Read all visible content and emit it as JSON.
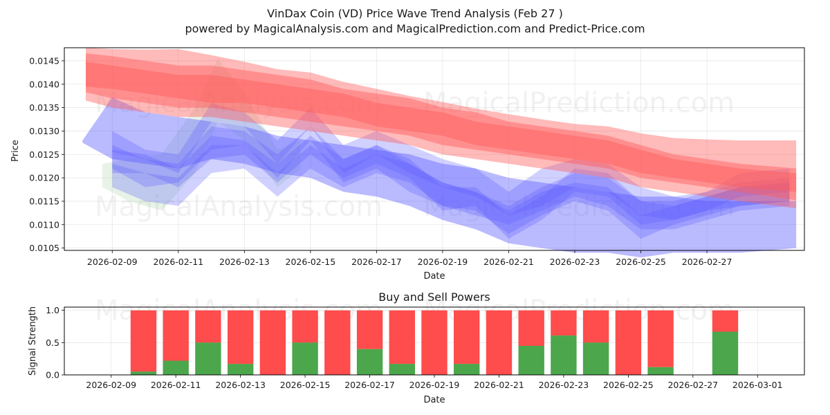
{
  "chart_data": [
    {
      "type": "area",
      "title_line1": "VinDax Coin (VD) Price Wave Trend Analysis (Feb 27 )",
      "title_line2": "powered by MagicalAnalysis.com and MagicalPrediction.com and Predict-Price.com",
      "xlabel": "Date",
      "ylabel": "Price",
      "ylim": [
        0.01045,
        0.01478
      ],
      "xlim_day": [
        7.55,
        29.95
      ],
      "x_ticks": [
        {
          "day": 9,
          "label": "2026-02-09"
        },
        {
          "day": 11,
          "label": "2026-02-11"
        },
        {
          "day": 13,
          "label": "2026-02-13"
        },
        {
          "day": 15,
          "label": "2026-02-15"
        },
        {
          "day": 17,
          "label": "2026-02-17"
        },
        {
          "day": 19,
          "label": "2026-02-19"
        },
        {
          "day": 21,
          "label": "2026-02-21"
        },
        {
          "day": 23,
          "label": "2026-02-23"
        },
        {
          "day": 25,
          "label": "2026-02-25"
        },
        {
          "day": 27,
          "label": "2026-02-27"
        }
      ],
      "y_ticks": [
        {
          "value": 0.0105,
          "label": "0.0105"
        },
        {
          "value": 0.011,
          "label": "0.0110"
        },
        {
          "value": 0.0115,
          "label": "0.0115"
        },
        {
          "value": 0.012,
          "label": "0.0120"
        },
        {
          "value": 0.0125,
          "label": "0.0125"
        },
        {
          "value": 0.013,
          "label": "0.0130"
        },
        {
          "value": 0.0135,
          "label": "0.0135"
        },
        {
          "value": 0.014,
          "label": "0.0140"
        },
        {
          "value": 0.0145,
          "label": "0.0145"
        }
      ],
      "watermarks": [
        "MagicalAnalysis.com",
        "MagicalPrediction.com"
      ],
      "red_bands": [
        {
          "x": [
            8.2,
            9,
            10,
            11,
            12,
            13,
            14,
            15,
            16,
            17,
            18,
            19,
            20,
            21,
            22,
            23,
            24,
            25,
            26,
            27,
            28,
            29.7
          ],
          "lower": [
            0.01365,
            0.0135,
            0.0134,
            0.0133,
            0.0133,
            0.0132,
            0.0131,
            0.013,
            0.0129,
            0.0128,
            0.0127,
            0.0125,
            0.0124,
            0.0123,
            0.0122,
            0.0121,
            0.012,
            0.0118,
            0.0117,
            0.0116,
            0.0115,
            0.01135
          ],
          "upper": [
            0.01478,
            0.01475,
            0.01474,
            0.01475,
            0.01462,
            0.01448,
            0.01432,
            0.01425,
            0.01405,
            0.0139,
            0.01375,
            0.01362,
            0.01348,
            0.01336,
            0.01325,
            0.01315,
            0.0131,
            0.01295,
            0.01285,
            0.01282,
            0.0128,
            0.0128
          ]
        },
        {
          "x": [
            8.2,
            9,
            10,
            11,
            12,
            13,
            14,
            15,
            16,
            17,
            18,
            19,
            20,
            21,
            22,
            23,
            24,
            25,
            26,
            27,
            28,
            29.7
          ],
          "lower": [
            0.01383,
            0.0137,
            0.0136,
            0.0135,
            0.0135,
            0.0134,
            0.0133,
            0.0132,
            0.0131,
            0.013,
            0.0129,
            0.0127,
            0.0126,
            0.0125,
            0.0124,
            0.0123,
            0.0122,
            0.012,
            0.0119,
            0.0118,
            0.0117,
            0.01152
          ],
          "upper": [
            0.01466,
            0.0146,
            0.0145,
            0.0144,
            0.0144,
            0.0143,
            0.0142,
            0.0141,
            0.0139,
            0.0138,
            0.0137,
            0.0135,
            0.0134,
            0.0132,
            0.0131,
            0.013,
            0.0129,
            0.0127,
            0.0125,
            0.0124,
            0.0123,
            0.0122
          ]
        },
        {
          "x": [
            8.2,
            9,
            10,
            11,
            12,
            13,
            14,
            15,
            16,
            17,
            18,
            19,
            20,
            21,
            22,
            23,
            24,
            25,
            26,
            27,
            28,
            29.7
          ],
          "lower": [
            0.01395,
            0.0139,
            0.0138,
            0.0137,
            0.0136,
            0.0136,
            0.0135,
            0.0134,
            0.0133,
            0.0131,
            0.013,
            0.0129,
            0.0127,
            0.0126,
            0.0125,
            0.0124,
            0.0123,
            0.0121,
            0.012,
            0.0119,
            0.0118,
            0.0117
          ],
          "upper": [
            0.01448,
            0.0144,
            0.0143,
            0.0142,
            0.0142,
            0.0141,
            0.014,
            0.0139,
            0.0138,
            0.0136,
            0.0135,
            0.0134,
            0.0132,
            0.0131,
            0.013,
            0.0129,
            0.0128,
            0.0126,
            0.0124,
            0.0123,
            0.0122,
            0.0121
          ]
        }
      ],
      "blue_bands": [
        {
          "x": [
            8.1,
            9,
            10,
            11,
            12,
            13,
            14,
            15,
            16,
            17,
            18,
            19,
            20,
            21,
            22,
            23,
            24,
            25,
            26,
            27,
            28,
            29.7
          ],
          "lower": [
            0.01275,
            0.0124,
            0.0123,
            0.0122,
            0.0124,
            0.0123,
            0.0121,
            0.012,
            0.0117,
            0.0116,
            0.0114,
            0.0111,
            0.0109,
            0.0106,
            0.0105,
            0.0104,
            0.0104,
            0.0103,
            0.0104,
            0.0104,
            0.0104,
            0.0105
          ],
          "upper": [
            0.0128,
            0.01372,
            0.0134,
            0.0133,
            0.0132,
            0.0131,
            0.0129,
            0.0128,
            0.0127,
            0.0126,
            0.0125,
            0.0123,
            0.0122,
            0.012,
            0.0119,
            0.0118,
            0.0117,
            0.0116,
            0.0116,
            0.0115,
            0.0115,
            0.0115
          ]
        },
        {
          "x": [
            9,
            10,
            11,
            12,
            13,
            14,
            15,
            16,
            17,
            18,
            19,
            20,
            21,
            22,
            23,
            24,
            25,
            26,
            27,
            28,
            29.5
          ],
          "lower": [
            0.01255,
            0.0124,
            0.0121,
            0.0132,
            0.0131,
            0.0123,
            0.0131,
            0.0121,
            0.0125,
            0.0121,
            0.0118,
            0.0116,
            0.0112,
            0.0114,
            0.0118,
            0.0117,
            0.0112,
            0.0111,
            0.0113,
            0.0114,
            0.0115
          ],
          "upper": [
            0.013,
            0.0126,
            0.0125,
            0.0136,
            0.0134,
            0.0128,
            0.0135,
            0.0127,
            0.013,
            0.0127,
            0.0124,
            0.0122,
            0.0117,
            0.0122,
            0.0124,
            0.0123,
            0.0118,
            0.0116,
            0.0117,
            0.0119,
            0.012
          ]
        },
        {
          "x": [
            9,
            10,
            11,
            12,
            13,
            14,
            15,
            16,
            17,
            18,
            19,
            20,
            21,
            22,
            23,
            24,
            25,
            26,
            27,
            28,
            29.5
          ],
          "lower": [
            0.0122,
            0.0118,
            0.0119,
            0.0126,
            0.0127,
            0.012,
            0.0128,
            0.0119,
            0.0122,
            0.0117,
            0.0114,
            0.0112,
            0.011,
            0.0113,
            0.0116,
            0.0114,
            0.0109,
            0.0109,
            0.0111,
            0.0113,
            0.0114
          ],
          "upper": [
            0.0127,
            0.0124,
            0.0123,
            0.0131,
            0.013,
            0.0125,
            0.0131,
            0.0124,
            0.0127,
            0.0123,
            0.0119,
            0.0117,
            0.0114,
            0.0118,
            0.0121,
            0.012,
            0.0115,
            0.0114,
            0.0116,
            0.0118,
            0.0119
          ]
        },
        {
          "x": [
            9,
            10,
            11,
            12,
            13,
            14,
            15,
            16,
            17,
            18,
            19,
            20,
            21,
            22,
            23,
            24,
            25,
            26,
            27,
            28,
            29.5
          ],
          "lower": [
            0.0118,
            0.0115,
            0.0114,
            0.0121,
            0.0122,
            0.0116,
            0.0122,
            0.0118,
            0.0121,
            0.0119,
            0.0114,
            0.0113,
            0.0108,
            0.0112,
            0.0115,
            0.0113,
            0.0107,
            0.011,
            0.0112,
            0.0114,
            0.0115
          ],
          "upper": [
            0.0123,
            0.0121,
            0.012,
            0.0127,
            0.0127,
            0.0121,
            0.0127,
            0.0122,
            0.0125,
            0.0123,
            0.0119,
            0.0117,
            0.0113,
            0.0117,
            0.0119,
            0.0118,
            0.0112,
            0.0114,
            0.0116,
            0.0118,
            0.0119
          ]
        },
        {
          "x": [
            9,
            10,
            11,
            12,
            13,
            14,
            15,
            16,
            17,
            18,
            19,
            20,
            21,
            22,
            23,
            24,
            25,
            26,
            27,
            28,
            29.5
          ],
          "lower": [
            0.0121,
            0.0121,
            0.0118,
            0.0124,
            0.0125,
            0.0119,
            0.0125,
            0.012,
            0.0123,
            0.012,
            0.0113,
            0.0114,
            0.0107,
            0.0111,
            0.0117,
            0.0116,
            0.011,
            0.0111,
            0.0113,
            0.0116,
            0.0117
          ],
          "upper": [
            0.0126,
            0.0125,
            0.0122,
            0.0129,
            0.0128,
            0.0123,
            0.0129,
            0.0124,
            0.0127,
            0.0124,
            0.0118,
            0.0118,
            0.0112,
            0.0116,
            0.0122,
            0.0121,
            0.0115,
            0.0115,
            0.0117,
            0.0121,
            0.0122
          ]
        }
      ],
      "green_bands": [
        {
          "x": [
            8.7,
            9.5,
            10.5,
            11.5,
            12.2,
            13,
            14,
            14.7
          ],
          "lower": [
            0.0118,
            0.0115,
            0.0113,
            0.0121,
            0.0132,
            0.0128,
            0.0118,
            0.0122
          ],
          "upper": [
            0.0123,
            0.0124,
            0.0125,
            0.0135,
            0.01455,
            0.0138,
            0.0126,
            0.0128
          ]
        }
      ]
    },
    {
      "type": "bar",
      "title": "Buy and Sell Powers",
      "xlabel": "Date",
      "ylabel": "Signal Strength",
      "ylim": [
        0,
        1.05
      ],
      "xlim_day": [
        7.55,
        30.45
      ],
      "x_ticks": [
        {
          "day": 9,
          "label": "2026-02-09"
        },
        {
          "day": 11,
          "label": "2026-02-11"
        },
        {
          "day": 13,
          "label": "2026-02-13"
        },
        {
          "day": 15,
          "label": "2026-02-15"
        },
        {
          "day": 17,
          "label": "2026-02-17"
        },
        {
          "day": 19,
          "label": "2026-02-19"
        },
        {
          "day": 21,
          "label": "2026-02-21"
        },
        {
          "day": 23,
          "label": "2026-02-23"
        },
        {
          "day": 25,
          "label": "2026-02-25"
        },
        {
          "day": 27,
          "label": "2026-02-27"
        },
        {
          "day": 29,
          "label": "2026-03-01"
        }
      ],
      "y_ticks": [
        {
          "value": 0,
          "label": "0.0"
        },
        {
          "value": 0.5,
          "label": "0.5"
        },
        {
          "value": 1,
          "label": "1.0"
        }
      ],
      "series": [
        {
          "name": "Buy",
          "color": "#4ca64c"
        },
        {
          "name": "Sell",
          "color": "#ff4c4c"
        }
      ],
      "bars": [
        {
          "day": 10,
          "buy": 0.05
        },
        {
          "day": 11,
          "buy": 0.22
        },
        {
          "day": 12,
          "buy": 0.5
        },
        {
          "day": 13,
          "buy": 0.17
        },
        {
          "day": 14,
          "buy": 0.0
        },
        {
          "day": 15,
          "buy": 0.5
        },
        {
          "day": 16,
          "buy": 0.0
        },
        {
          "day": 17,
          "buy": 0.4
        },
        {
          "day": 18,
          "buy": 0.17
        },
        {
          "day": 19,
          "buy": 0.0
        },
        {
          "day": 20,
          "buy": 0.17
        },
        {
          "day": 21,
          "buy": 0.0
        },
        {
          "day": 22,
          "buy": 0.45
        },
        {
          "day": 23,
          "buy": 0.61
        },
        {
          "day": 24,
          "buy": 0.5
        },
        {
          "day": 25,
          "buy": 0.0
        },
        {
          "day": 26,
          "buy": 0.12
        },
        {
          "day": 28,
          "buy": 0.67
        }
      ]
    }
  ]
}
